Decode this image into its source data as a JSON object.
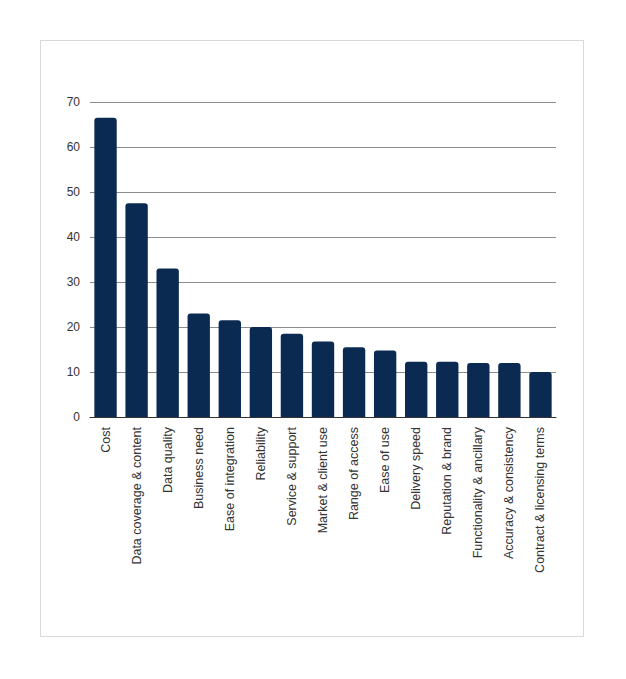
{
  "chart_data": {
    "type": "bar",
    "categories": [
      "Cost",
      "Data coverage & content",
      "Data quality",
      "Business need",
      "Ease of integration",
      "Reliability",
      "Service & support",
      "Market & client use",
      "Range of access",
      "Ease of use",
      "Delivery speed",
      "Reputation & brand",
      "Functionality & ancillary",
      "Accuracy & consistency",
      "Contract & licensing terms"
    ],
    "values": [
      66.5,
      47.5,
      33,
      23,
      21.5,
      20,
      18.5,
      16.8,
      15.5,
      14.8,
      12.3,
      12.3,
      12,
      12,
      10
    ],
    "color": "#0b2a52",
    "ylim": [
      0,
      70
    ],
    "yticks": [
      0,
      10,
      20,
      30,
      40,
      50,
      60,
      70
    ],
    "grid": true
  }
}
